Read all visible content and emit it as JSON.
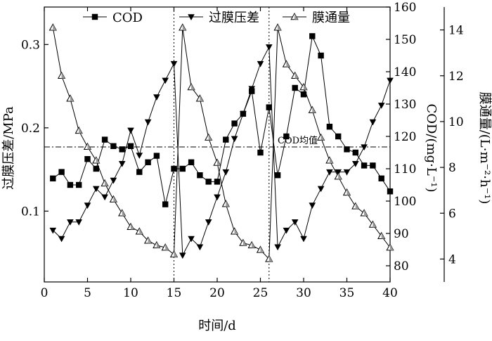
{
  "chart_data": {
    "type": "line",
    "xlabel": "时间/d",
    "x_ticks": [
      0,
      5,
      10,
      15,
      20,
      25,
      30,
      35,
      40
    ],
    "xlim": [
      0,
      40
    ],
    "axes": {
      "left": {
        "label": "过膜压差/MPa",
        "ticks": [
          0.1,
          0.2,
          0.3
        ],
        "ylim": [
          0.015,
          0.345
        ]
      },
      "right1": {
        "label": "COD/(mg·L⁻¹)",
        "ticks": [
          80,
          90,
          100,
          110,
          120,
          130,
          140,
          150,
          160
        ],
        "ylim": [
          75,
          160
        ]
      },
      "right2": {
        "label": "膜通量/(L·m⁻²·h⁻¹)",
        "ticks": [
          4,
          6,
          8,
          10,
          12,
          14
        ],
        "ylim": [
          3.0,
          15.0
        ]
      }
    },
    "legend": {
      "placement": "top"
    },
    "series": [
      {
        "name": "COD",
        "axis": "right1",
        "marker": "square",
        "x": [
          1,
          2,
          3,
          4,
          5,
          6,
          7,
          8,
          9,
          10,
          11,
          12,
          13,
          14,
          15,
          16,
          17,
          18,
          19,
          20,
          21,
          22,
          23,
          24,
          25,
          26,
          27,
          28,
          29,
          30,
          31,
          32,
          33,
          34,
          35,
          36,
          37,
          38,
          39,
          40
        ],
        "values": [
          107,
          109,
          105,
          105,
          113,
          110,
          119,
          117,
          116,
          117,
          109,
          112,
          114,
          99,
          110,
          110,
          112,
          108,
          106,
          106,
          119,
          124,
          127,
          134,
          115,
          129,
          108,
          120,
          135,
          133,
          151,
          145,
          123,
          120,
          116,
          115,
          111,
          111,
          107,
          103
        ]
      },
      {
        "name": "过膜压差",
        "axis": "left",
        "marker": "triangle-down",
        "x": [
          1,
          2,
          3,
          4,
          5,
          6,
          7,
          8,
          9,
          10,
          11,
          12,
          13,
          14,
          15,
          16,
          17,
          18,
          19,
          20,
          21,
          22,
          23,
          24,
          25,
          26,
          27,
          28,
          29,
          30,
          31,
          32,
          33,
          34,
          35,
          36,
          37,
          38,
          39,
          40
        ],
        "values": [
          0.077,
          0.067,
          0.087,
          0.087,
          0.107,
          0.127,
          0.117,
          0.137,
          0.157,
          0.197,
          0.167,
          0.207,
          0.237,
          0.257,
          0.277,
          0.047,
          0.067,
          0.057,
          0.087,
          0.117,
          0.147,
          0.187,
          0.217,
          0.247,
          0.277,
          0.297,
          0.057,
          0.077,
          0.087,
          0.067,
          0.107,
          0.127,
          0.147,
          0.147,
          0.147,
          0.157,
          0.177,
          0.207,
          0.227,
          0.257
        ]
      },
      {
        "name": "膜通量",
        "axis": "right2",
        "marker": "triangle-up",
        "x": [
          1,
          2,
          3,
          4,
          5,
          6,
          7,
          8,
          9,
          10,
          11,
          12,
          13,
          14,
          15,
          16,
          17,
          18,
          19,
          20,
          21,
          22,
          23,
          24,
          25,
          26,
          27,
          28,
          29,
          30,
          31,
          32,
          33,
          34,
          35,
          36,
          37,
          38,
          39,
          40
        ],
        "values": [
          14.1,
          12.0,
          11.0,
          9.6,
          8.9,
          8.3,
          7.3,
          6.6,
          6.0,
          5.4,
          5.2,
          4.8,
          4.6,
          4.5,
          4.2,
          14.1,
          11.5,
          11.0,
          9.3,
          8.2,
          6.4,
          5.2,
          4.7,
          4.6,
          4.4,
          4.0,
          14.1,
          12.5,
          12.0,
          11.5,
          10.5,
          9.3,
          8.3,
          7.6,
          6.9,
          6.3,
          6.0,
          5.5,
          5.0,
          4.5
        ]
      }
    ],
    "reference_lines": [
      {
        "type": "vertical",
        "x": 15,
        "style": "dotted"
      },
      {
        "type": "vertical",
        "x": 26,
        "style": "dotted"
      },
      {
        "type": "horizontal",
        "axis": "left",
        "y": 0.177,
        "style": "dash-dot",
        "label": "COD均值"
      }
    ],
    "grid": false
  }
}
